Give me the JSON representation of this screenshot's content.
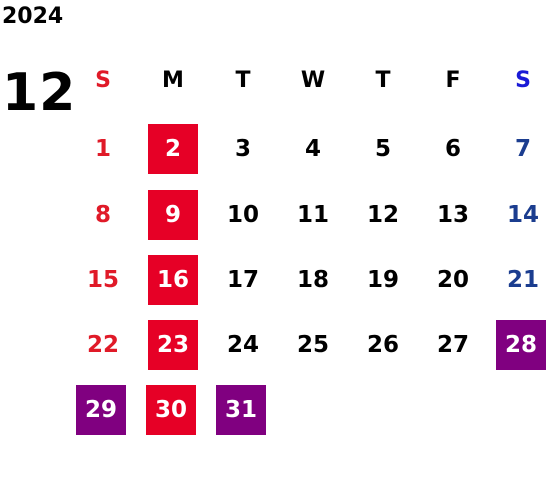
{
  "year": "2024",
  "month": "12",
  "weekdays": [
    "S",
    "M",
    "T",
    "W",
    "T",
    "F",
    "S"
  ],
  "days": [
    "1",
    "2",
    "3",
    "4",
    "5",
    "6",
    "7",
    "8",
    "9",
    "10",
    "11",
    "12",
    "13",
    "14",
    "15",
    "16",
    "17",
    "18",
    "19",
    "20",
    "21",
    "22",
    "23",
    "24",
    "25",
    "26",
    "27",
    "28",
    "29",
    "30",
    "31"
  ],
  "colors": {
    "sunday_text": "#e01a28",
    "saturday_text": "#1b3d8f",
    "saturday_header": "#1a1ad6",
    "holiday_red": "#e60026",
    "holiday_purple": "#800080"
  },
  "highlighted_red": [
    "2",
    "9",
    "16",
    "23",
    "30"
  ],
  "highlighted_purple": [
    "28",
    "29",
    "31"
  ]
}
